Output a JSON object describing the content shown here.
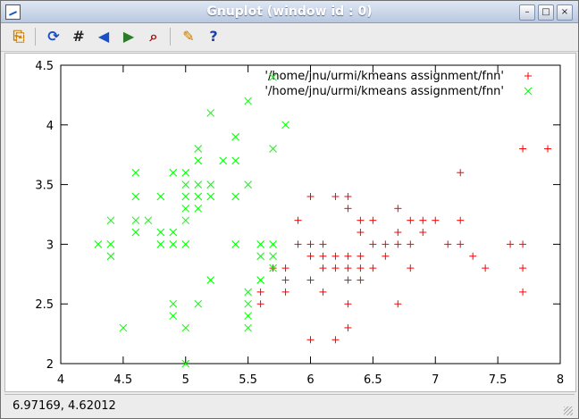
{
  "window": {
    "title": "Gnuplot (window id : 0)",
    "controls": [
      "–",
      "□",
      "×"
    ]
  },
  "toolbar": {
    "icons": [
      "copy-to-clipboard-icon",
      "print-icon",
      "replot-icon",
      "grid-icon",
      "previous-zoom-icon",
      "next-zoom-icon",
      "autoscale-icon",
      "config-icon",
      "help-icon"
    ]
  },
  "status": {
    "coords": "6.97169,  4.62012"
  },
  "chart_data": {
    "type": "scatter",
    "title": "",
    "xlabel": "",
    "ylabel": "",
    "xlim": [
      4,
      8
    ],
    "ylim": [
      2,
      4.5
    ],
    "xticks": [
      "4",
      "4.5",
      "5",
      "5.5",
      "6",
      "6.5",
      "7",
      "7.5",
      "8"
    ],
    "yticks": [
      "2",
      "2.5",
      "3",
      "3.5",
      "4",
      "4.5"
    ],
    "grid": false,
    "legend": "top-right",
    "series": [
      {
        "name": "'/home/jnu/urmi/kmeans assignment/fnn'",
        "marker": "+",
        "color": "#ff0000",
        "points": [
          [
            5.6,
            2.6
          ],
          [
            5.6,
            2.5
          ],
          [
            5.7,
            2.8
          ],
          [
            5.8,
            2.8
          ],
          [
            5.8,
            2.7
          ],
          [
            5.8,
            2.6
          ],
          [
            5.9,
            3.0
          ],
          [
            5.9,
            3.2
          ],
          [
            6.0,
            2.2
          ],
          [
            6.0,
            2.7
          ],
          [
            6.0,
            2.9
          ],
          [
            6.0,
            3.0
          ],
          [
            6.0,
            3.4
          ],
          [
            6.1,
            2.6
          ],
          [
            6.1,
            2.8
          ],
          [
            6.1,
            2.9
          ],
          [
            6.1,
            3.0
          ],
          [
            6.2,
            2.2
          ],
          [
            6.2,
            2.8
          ],
          [
            6.2,
            2.9
          ],
          [
            6.2,
            3.4
          ],
          [
            6.3,
            2.3
          ],
          [
            6.3,
            2.5
          ],
          [
            6.3,
            2.7
          ],
          [
            6.3,
            2.8
          ],
          [
            6.3,
            2.9
          ],
          [
            6.3,
            3.3
          ],
          [
            6.3,
            3.4
          ],
          [
            6.4,
            2.7
          ],
          [
            6.4,
            2.8
          ],
          [
            6.4,
            2.9
          ],
          [
            6.4,
            3.1
          ],
          [
            6.4,
            3.2
          ],
          [
            6.5,
            2.8
          ],
          [
            6.5,
            3.0
          ],
          [
            6.5,
            3.2
          ],
          [
            6.6,
            2.9
          ],
          [
            6.6,
            3.0
          ],
          [
            6.7,
            2.5
          ],
          [
            6.7,
            3.0
          ],
          [
            6.7,
            3.1
          ],
          [
            6.7,
            3.3
          ],
          [
            6.8,
            2.8
          ],
          [
            6.8,
            3.0
          ],
          [
            6.8,
            3.2
          ],
          [
            6.9,
            3.1
          ],
          [
            6.9,
            3.2
          ],
          [
            7.0,
            3.2
          ],
          [
            7.1,
            3.0
          ],
          [
            7.2,
            3.0
          ],
          [
            7.2,
            3.2
          ],
          [
            7.2,
            3.6
          ],
          [
            7.3,
            2.9
          ],
          [
            7.4,
            2.8
          ],
          [
            7.6,
            3.0
          ],
          [
            7.7,
            2.6
          ],
          [
            7.7,
            2.8
          ],
          [
            7.7,
            3.0
          ],
          [
            7.7,
            3.8
          ],
          [
            7.9,
            3.8
          ]
        ]
      },
      {
        "name": "'/home/jnu/urmi/kmeans assignment/fnn'",
        "marker": "x",
        "color": "#00ff00",
        "points": [
          [
            4.3,
            3.0
          ],
          [
            4.4,
            2.9
          ],
          [
            4.4,
            3.0
          ],
          [
            4.4,
            3.2
          ],
          [
            4.5,
            2.3
          ],
          [
            4.6,
            3.1
          ],
          [
            4.6,
            3.2
          ],
          [
            4.6,
            3.4
          ],
          [
            4.6,
            3.6
          ],
          [
            4.7,
            3.2
          ],
          [
            4.8,
            3.0
          ],
          [
            4.8,
            3.1
          ],
          [
            4.8,
            3.4
          ],
          [
            4.9,
            2.4
          ],
          [
            4.9,
            2.5
          ],
          [
            4.9,
            3.0
          ],
          [
            4.9,
            3.1
          ],
          [
            4.9,
            3.6
          ],
          [
            5.0,
            2.0
          ],
          [
            5.0,
            2.3
          ],
          [
            5.0,
            3.0
          ],
          [
            5.0,
            3.2
          ],
          [
            5.0,
            3.3
          ],
          [
            5.0,
            3.4
          ],
          [
            5.0,
            3.5
          ],
          [
            5.0,
            3.6
          ],
          [
            5.1,
            2.5
          ],
          [
            5.1,
            3.3
          ],
          [
            5.1,
            3.4
          ],
          [
            5.1,
            3.5
          ],
          [
            5.1,
            3.7
          ],
          [
            5.1,
            3.8
          ],
          [
            5.2,
            2.7
          ],
          [
            5.2,
            3.4
          ],
          [
            5.2,
            3.5
          ],
          [
            5.2,
            4.1
          ],
          [
            5.3,
            3.7
          ],
          [
            5.4,
            3.0
          ],
          [
            5.4,
            3.4
          ],
          [
            5.4,
            3.7
          ],
          [
            5.4,
            3.9
          ],
          [
            5.5,
            2.3
          ],
          [
            5.5,
            2.4
          ],
          [
            5.5,
            2.5
          ],
          [
            5.5,
            2.6
          ],
          [
            5.5,
            3.5
          ],
          [
            5.5,
            4.2
          ],
          [
            5.6,
            2.7
          ],
          [
            5.6,
            2.9
          ],
          [
            5.6,
            3.0
          ],
          [
            5.7,
            2.8
          ],
          [
            5.7,
            2.9
          ],
          [
            5.7,
            3.0
          ],
          [
            5.7,
            3.8
          ],
          [
            5.7,
            4.4
          ],
          [
            5.8,
            4.0
          ]
        ]
      }
    ]
  }
}
